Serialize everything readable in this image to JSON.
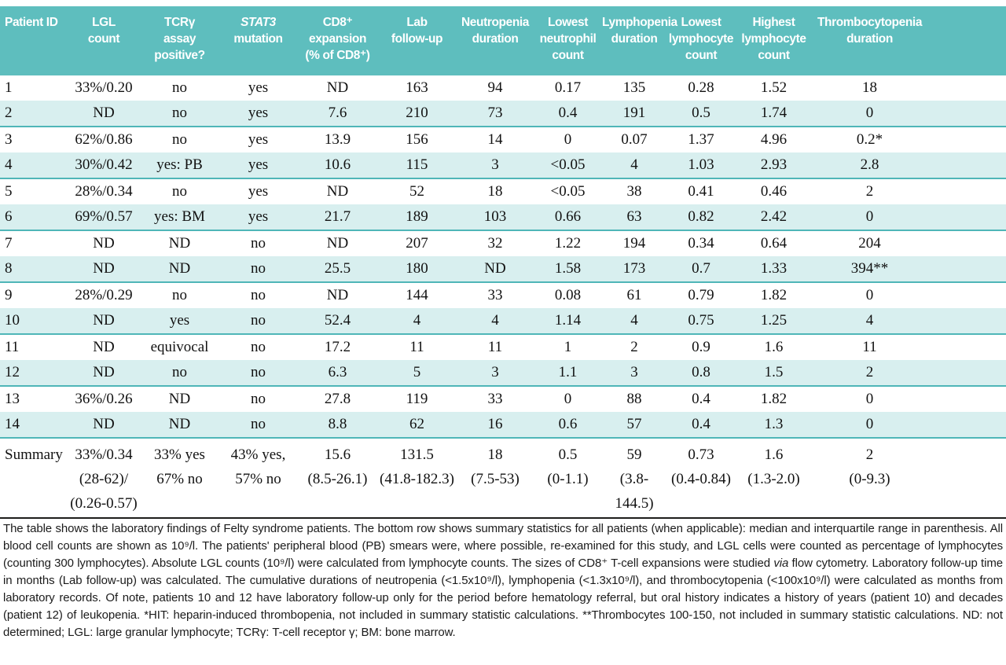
{
  "table": {
    "columns": [
      {
        "id": "patient-id",
        "lines": [
          {
            "text": "Patient ID"
          }
        ]
      },
      {
        "id": "lgl-count",
        "lines": [
          {
            "text": "LGL"
          },
          {
            "text": "count"
          }
        ]
      },
      {
        "id": "tcr-gamma-assay-positive",
        "lines": [
          {
            "text": "TCRγ"
          },
          {
            "text": "assay"
          },
          {
            "text": "positive?"
          }
        ]
      },
      {
        "id": "stat3-mutation",
        "lines": [
          {
            "text": "STAT3",
            "italic": true
          },
          {
            "text": "mutation"
          }
        ]
      },
      {
        "id": "cd8-expansion",
        "lines": [
          {
            "text": "CD8⁺"
          },
          {
            "text": "expansion"
          },
          {
            "text": "(% of CD8⁺)"
          }
        ]
      },
      {
        "id": "lab-follow-up",
        "lines": [
          {
            "text": "Lab"
          },
          {
            "text": "follow-up"
          }
        ]
      },
      {
        "id": "neutropenia-duration",
        "lines": [
          {
            "text": "Neutropenia"
          },
          {
            "text": "duration"
          }
        ]
      },
      {
        "id": "lowest-neutrophil-count",
        "lines": [
          {
            "text": "Lowest"
          },
          {
            "text": "neutrophil"
          },
          {
            "text": "count"
          }
        ]
      },
      {
        "id": "lymphopenia-duration",
        "lines": [
          {
            "text": "Lymphopenia"
          },
          {
            "text": "duration"
          }
        ]
      },
      {
        "id": "lowest-lymphocyte-count",
        "lines": [
          {
            "text": "Lowest"
          },
          {
            "text": "lymphocyte"
          },
          {
            "text": "count"
          }
        ]
      },
      {
        "id": "highest-lymphocyte-count",
        "lines": [
          {
            "text": "Highest"
          },
          {
            "text": "lymphocyte"
          },
          {
            "text": "count"
          }
        ]
      },
      {
        "id": "thrombocytopenia-duration",
        "lines": [
          {
            "text": "Thrombocytopenia"
          },
          {
            "text": "duration"
          }
        ]
      }
    ],
    "rows": [
      [
        "1",
        "33%/0.20",
        "no",
        "yes",
        "ND",
        "163",
        "94",
        "0.17",
        "135",
        "0.28",
        "1.52",
        "18"
      ],
      [
        "2",
        "ND",
        "no",
        "yes",
        "7.6",
        "210",
        "73",
        "0.4",
        "191",
        "0.5",
        "1.74",
        "0"
      ],
      [
        "3",
        "62%/0.86",
        "no",
        "yes",
        "13.9",
        "156",
        "14",
        "0",
        "0.07",
        "1.37",
        "4.96",
        "0.2*"
      ],
      [
        "4",
        "30%/0.42",
        "yes: PB",
        "yes",
        "10.6",
        "115",
        "3",
        "<0.05",
        "4",
        "1.03",
        "2.93",
        "2.8"
      ],
      [
        "5",
        "28%/0.34",
        "no",
        "yes",
        "ND",
        "52",
        "18",
        "<0.05",
        "38",
        "0.41",
        "0.46",
        "2"
      ],
      [
        "6",
        "69%/0.57",
        "yes: BM",
        "yes",
        "21.7",
        "189",
        "103",
        "0.66",
        "63",
        "0.82",
        "2.42",
        "0"
      ],
      [
        "7",
        "ND",
        "ND",
        "no",
        "ND",
        "207",
        "32",
        "1.22",
        "194",
        "0.34",
        "0.64",
        "204"
      ],
      [
        "8",
        "ND",
        "ND",
        "no",
        "25.5",
        "180",
        "ND",
        "1.58",
        "173",
        "0.7",
        "1.33",
        "394**"
      ],
      [
        "9",
        "28%/0.29",
        "no",
        "no",
        "ND",
        "144",
        "33",
        "0.08",
        "61",
        "0.79",
        "1.82",
        "0"
      ],
      [
        "10",
        "ND",
        "yes",
        "no",
        "52.4",
        "4",
        "4",
        "1.14",
        "4",
        "0.75",
        "1.25",
        "4"
      ],
      [
        "11",
        "ND",
        "equivocal",
        "no",
        "17.2",
        "11",
        "11",
        "1",
        "2",
        "0.9",
        "1.6",
        "11"
      ],
      [
        "12",
        "ND",
        "no",
        "no",
        "6.3",
        "5",
        "3",
        "1.1",
        "3",
        "0.8",
        "1.5",
        "2"
      ],
      [
        "13",
        "36%/0.26",
        "ND",
        "no",
        "27.8",
        "119",
        "33",
        "0",
        "88",
        "0.4",
        "1.82",
        "0"
      ],
      [
        "14",
        "ND",
        "ND",
        "no",
        "8.8",
        "62",
        "16",
        "0.6",
        "57",
        "0.4",
        "1.3",
        "0"
      ]
    ],
    "summary_row": [
      [
        "Summary"
      ],
      [
        "33%/0.34",
        "(28-62)/",
        "(0.26-0.57)"
      ],
      [
        "33% yes",
        "67% no"
      ],
      [
        "43% yes,",
        "57% no"
      ],
      [
        "15.6",
        "(8.5-26.1)"
      ],
      [
        "131.5",
        "(41.8-182.3)"
      ],
      [
        "18",
        "(7.5-53)"
      ],
      [
        "0.5",
        "(0-1.1)"
      ],
      [
        "59",
        "(3.8-144.5)"
      ],
      [
        "0.73",
        "(0.4-0.84)"
      ],
      [
        "1.6",
        "(1.3-2.0)"
      ],
      [
        "2",
        "(0-9.3)"
      ]
    ]
  },
  "footnote": {
    "segments": [
      {
        "text": "The table shows the laboratory findings of Felty syndrome patients. The bottom row shows summary statistics for all patients (when applicable): median and interquartile range in parenthesis. All blood cell counts are shown as 10⁹/l. The patients' peripheral blood (PB) smears were, where possible, re-examined for this study, and LGL cells were counted as percentage of lymphocytes (counting 300 lymphocytes). Absolute LGL counts (10⁹/l) were calculated from lymphocyte counts. The sizes of CD8⁺ T-cell expansions were studied "
      },
      {
        "text": "via",
        "italic": true
      },
      {
        "text": " flow cytometry. Laboratory follow-up time in months (Lab follow-up) was calculated. The cumulative durations of neutropenia (<1.5x10⁹/l), lymphopenia (<1.3x10⁹/l), and thrombocytopenia (<100x10⁹/l) were calculated as months from laboratory records. Of note, patients 10 and 12 have laboratory follow-up only for the period before hematology referral, but oral history indicates a history of years (patient 10) and decades (patient 12) of leukopenia. *HIT: heparin-induced thrombopenia, not included in summary statistic calculations. **Thrombocytes 100-150, not included in summary statistic calculations. ND: not determined; LGL: large granular lymphocyte; TCRγ: T-cell receptor γ; BM: bone marrow."
      }
    ]
  },
  "colors": {
    "header_background": "#5ebebe",
    "stripe_background": "#d8efef",
    "stripe_rule": "#4fb6b8",
    "bottom_rule": "#1d1d1b",
    "header_text": "#ffffff",
    "body_text": "#121212"
  }
}
